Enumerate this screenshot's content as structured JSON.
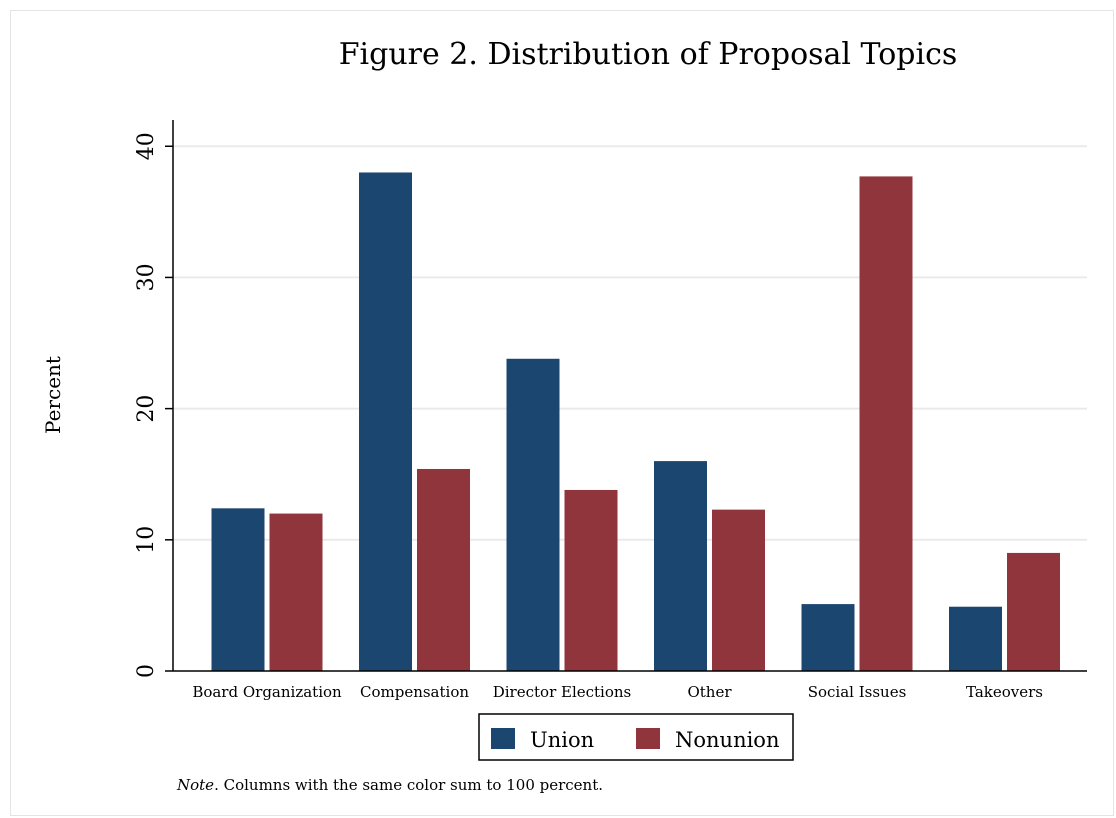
{
  "chart_data": {
    "type": "bar",
    "title": "Figure 2. Distribution of Proposal Topics",
    "ylabel": "Percent",
    "xlabel": "",
    "ylim": [
      0,
      42
    ],
    "yticks": [
      0,
      10,
      20,
      30,
      40
    ],
    "grid": true,
    "legend_placement": "bottom-center",
    "categories": [
      "Board Organization",
      "Compensation",
      "Director Elections",
      "Other",
      "Social Issues",
      "Takeovers"
    ],
    "series": [
      {
        "name": "Union",
        "color": "#1b4670",
        "values": [
          12.4,
          38.0,
          23.8,
          16.0,
          5.1,
          4.9
        ]
      },
      {
        "name": "Nonunion",
        "color": "#90353b",
        "values": [
          12.0,
          15.4,
          13.8,
          12.3,
          37.7,
          9.0
        ]
      }
    ],
    "note_prefix": "Note",
    "note_text": ". Columns with the same color sum to 100 percent."
  }
}
